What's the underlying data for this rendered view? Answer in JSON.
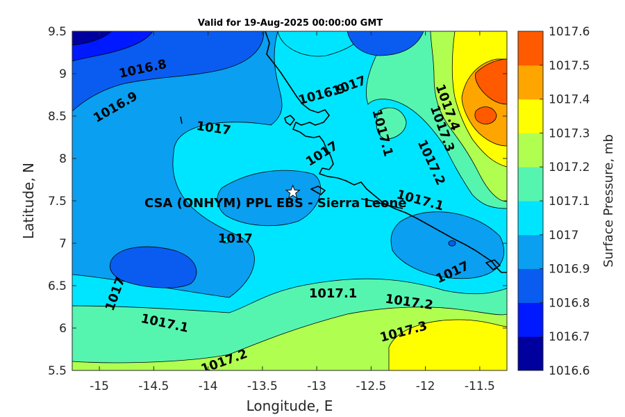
{
  "title": "Valid for 19-Aug-2025 00:00:00 GMT",
  "chart_data": {
    "type": "heatmap",
    "xlabel": "Longitude, E",
    "ylabel": "Latitude, N",
    "xlim": [
      -15.25,
      -11.25
    ],
    "ylim": [
      5.5,
      9.5
    ],
    "xticks": [
      "-15",
      "-14.5",
      "-14",
      "-13.5",
      "-13",
      "-12.5",
      "-12",
      "-11.5"
    ],
    "xtick_values": [
      -15,
      -14.5,
      -14,
      -13.5,
      -13,
      -12.5,
      -12,
      -11.5
    ],
    "yticks": [
      "5.5",
      "6",
      "6.5",
      "7",
      "7.5",
      "8",
      "8.5",
      "9",
      "9.5"
    ],
    "ytick_values": [
      5.5,
      6,
      6.5,
      7,
      7.5,
      8,
      8.5,
      9,
      9.5
    ],
    "colorbar": {
      "label": "Surface Pressure, mb",
      "levels": [
        "1016.6",
        "1016.7",
        "1016.8",
        "1016.9",
        "1017",
        "1017.1",
        "1017.2",
        "1017.3",
        "1017.4",
        "1017.5",
        "1017.6"
      ],
      "colors": [
        "#00009f",
        "#0019ff",
        "#0a5cf0",
        "#0a9ff0",
        "#00e5ff",
        "#55f5b0",
        "#b0ff50",
        "#ffff00",
        "#ffa500",
        "#ff5a00",
        "#ff0000"
      ]
    },
    "contour_labels": [
      {
        "text": "1016.8",
        "lon": -14.6,
        "lat": 9.05
      },
      {
        "text": "1016.9",
        "lon": -14.85,
        "lat": 8.6
      },
      {
        "text": "1016.9",
        "lon": -12.95,
        "lat": 8.75
      },
      {
        "text": "1017",
        "lon": -13.95,
        "lat": 8.35
      },
      {
        "text": "1017",
        "lon": -12.7,
        "lat": 8.85
      },
      {
        "text": "1017",
        "lon": -12.95,
        "lat": 8.05
      },
      {
        "text": "1017",
        "lon": -13.75,
        "lat": 7.05
      },
      {
        "text": "1017",
        "lon": -14.85,
        "lat": 6.4
      },
      {
        "text": "1017",
        "lon": -11.75,
        "lat": 6.65
      },
      {
        "text": "1017.1",
        "lon": -12.4,
        "lat": 8.3
      },
      {
        "text": "1017.1",
        "lon": -12.05,
        "lat": 7.5
      },
      {
        "text": "1017.1",
        "lon": -14.4,
        "lat": 6.05
      },
      {
        "text": "1017.1",
        "lon": -12.85,
        "lat": 6.4
      },
      {
        "text": "1017.2",
        "lon": -12.15,
        "lat": 6.3
      },
      {
        "text": "1017.2",
        "lon": -11.95,
        "lat": 7.95
      },
      {
        "text": "1017.2",
        "lon": -13.85,
        "lat": 5.6
      },
      {
        "text": "1017.3",
        "lon": -11.85,
        "lat": 8.35
      },
      {
        "text": "1017.3",
        "lon": -12.2,
        "lat": 5.95
      },
      {
        "text": "1017.4",
        "lon": -11.8,
        "lat": 8.6
      }
    ],
    "site": {
      "name": "CSA (ONHYM) PPL EBS  - Sierra Leone",
      "lon": -13.22,
      "lat": 7.6,
      "marker": "white-star"
    }
  }
}
